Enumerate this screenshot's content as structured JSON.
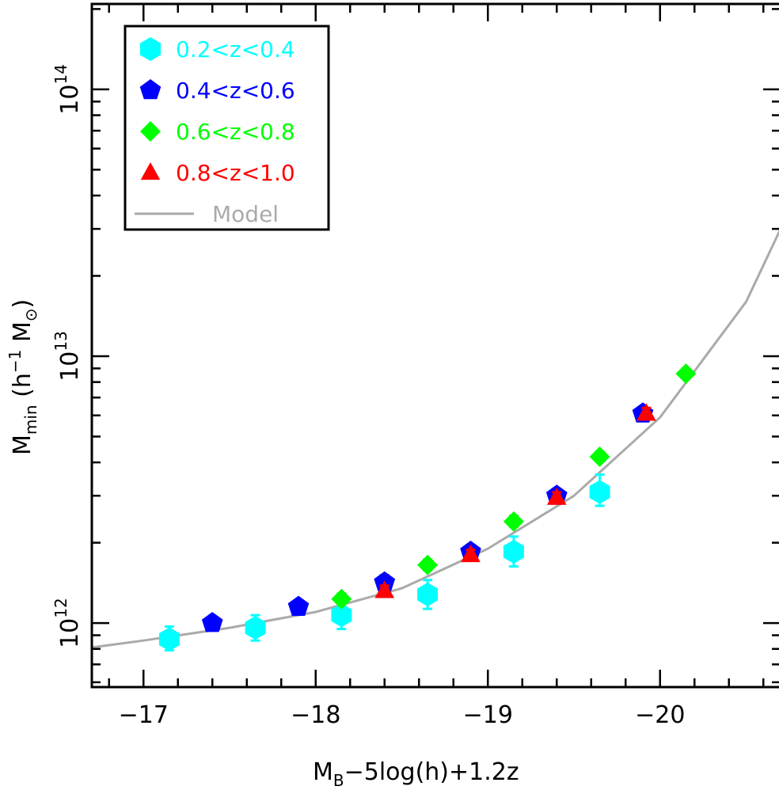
{
  "chart_data": {
    "type": "scatter",
    "title": "",
    "xlabel": {
      "main": "M",
      "sub": "B",
      "rest": "−5log(h)+1.2z"
    },
    "ylabel": {
      "main": "M",
      "sub": "min",
      "open": " (h",
      "sup": "−1",
      "mid": " M",
      "sun_sub": "⊙",
      "close": ")"
    },
    "xlim": [
      -16.7,
      -20.7
    ],
    "ylim_log10": [
      11.76,
      14.32
    ],
    "yscale": "log",
    "x_ticks": [
      {
        "value": -17,
        "label": "−17"
      },
      {
        "value": -18,
        "label": "−18"
      },
      {
        "value": -19,
        "label": "−19"
      },
      {
        "value": -20,
        "label": "−20"
      }
    ],
    "y_ticks": [
      {
        "log10": 12,
        "base": "10",
        "exp": "12"
      },
      {
        "log10": 13,
        "base": "10",
        "exp": "13"
      },
      {
        "log10": 14,
        "base": "10",
        "exp": "14"
      }
    ],
    "legend_position": "top-left",
    "series": [
      {
        "name": "0.2<z<0.4",
        "color": "#00ffff",
        "marker": "hexagon",
        "points": [
          {
            "x": -17.15,
            "y": 870000000000.0,
            "err_lo": 80000000000.0,
            "err_hi": 100000000000.0
          },
          {
            "x": -17.65,
            "y": 960000000000.0,
            "err_lo": 100000000000.0,
            "err_hi": 110000000000.0
          },
          {
            "x": -18.15,
            "y": 1070000000000.0,
            "err_lo": 120000000000.0,
            "err_hi": 130000000000.0
          },
          {
            "x": -18.65,
            "y": 1280000000000.0,
            "err_lo": 150000000000.0,
            "err_hi": 170000000000.0
          },
          {
            "x": -19.15,
            "y": 1850000000000.0,
            "err_lo": 220000000000.0,
            "err_hi": 260000000000.0
          },
          {
            "x": -19.65,
            "y": 3100000000000.0,
            "err_lo": 350000000000.0,
            "err_hi": 500000000000.0
          }
        ]
      },
      {
        "name": "0.4<z<0.6",
        "color": "#0000ff",
        "marker": "pentagon",
        "points": [
          {
            "x": -17.4,
            "y": 1000000000000.0,
            "err_lo": 40000000000.0,
            "err_hi": 50000000000.0
          },
          {
            "x": -17.9,
            "y": 1150000000000.0,
            "err_lo": 50000000000.0,
            "err_hi": 60000000000.0
          },
          {
            "x": -18.4,
            "y": 1420000000000.0,
            "err_lo": 70000000000.0,
            "err_hi": 90000000000.0
          },
          {
            "x": -18.9,
            "y": 1850000000000.0,
            "err_lo": 90000000000.0,
            "err_hi": 110000000000.0
          },
          {
            "x": -19.4,
            "y": 3000000000000.0,
            "err_lo": 150000000000.0,
            "err_hi": 180000000000.0
          },
          {
            "x": -19.9,
            "y": 6100000000000.0,
            "err_lo": 300000000000.0,
            "err_hi": 350000000000.0
          }
        ]
      },
      {
        "name": "0.6<z<0.8",
        "color": "#00ff00",
        "marker": "diamond",
        "points": [
          {
            "x": -18.15,
            "y": 1230000000000.0,
            "err_lo": 50000000000.0,
            "err_hi": 60000000000.0
          },
          {
            "x": -18.65,
            "y": 1650000000000.0,
            "err_lo": 70000000000.0,
            "err_hi": 80000000000.0
          },
          {
            "x": -19.15,
            "y": 2400000000000.0,
            "err_lo": 100000000000.0,
            "err_hi": 120000000000.0
          },
          {
            "x": -19.65,
            "y": 4200000000000.0,
            "err_lo": 160000000000.0,
            "err_hi": 190000000000.0
          },
          {
            "x": -20.15,
            "y": 8600000000000.0,
            "err_lo": 300000000000.0,
            "err_hi": 350000000000.0
          }
        ]
      },
      {
        "name": "0.8<z<1.0",
        "color": "#ff0000",
        "marker": "triangle",
        "points": [
          {
            "x": -18.4,
            "y": 1320000000000.0,
            "err_lo": 50000000000.0,
            "err_hi": 60000000000.0
          },
          {
            "x": -18.9,
            "y": 1800000000000.0,
            "err_lo": 70000000000.0,
            "err_hi": 80000000000.0
          },
          {
            "x": -19.4,
            "y": 2950000000000.0,
            "err_lo": 120000000000.0,
            "err_hi": 140000000000.0
          },
          {
            "x": -19.92,
            "y": 6100000000000.0,
            "err_lo": 250000000000.0,
            "err_hi": 300000000000.0
          }
        ]
      }
    ],
    "model": {
      "name": "Model",
      "color": "#aaaaaa",
      "x": [
        -16.7,
        -17.0,
        -17.5,
        -18.0,
        -18.5,
        -19.0,
        -19.5,
        -20.0,
        -20.5,
        -20.7
      ],
      "y": [
        810000000000.0,
        860000000000.0,
        960000000000.0,
        1100000000000.0,
        1350000000000.0,
        1900000000000.0,
        3000000000000.0,
        5900000000000.0,
        16000000000000.0,
        30000000000000.0
      ]
    }
  }
}
